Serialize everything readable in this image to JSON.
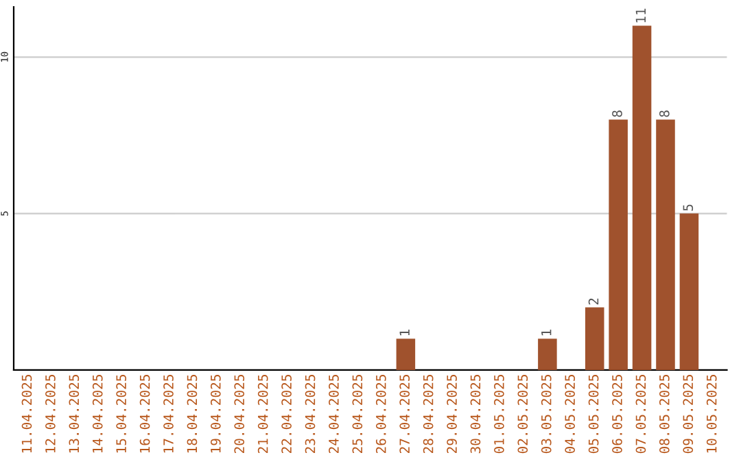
{
  "chart_data": {
    "type": "bar",
    "categories": [
      "11.04.2025",
      "12.04.2025",
      "13.04.2025",
      "14.04.2025",
      "15.04.2025",
      "16.04.2025",
      "17.04.2025",
      "18.04.2025",
      "19.04.2025",
      "20.04.2025",
      "21.04.2025",
      "22.04.2025",
      "23.04.2025",
      "24.04.2025",
      "25.04.2025",
      "26.04.2025",
      "27.04.2025",
      "28.04.2025",
      "29.04.2025",
      "30.04.2025",
      "01.05.2025",
      "02.05.2025",
      "03.05.2025",
      "04.05.2025",
      "05.05.2025",
      "06.05.2025",
      "07.05.2025",
      "08.05.2025",
      "09.05.2025",
      "10.05.2025"
    ],
    "values": [
      0,
      0,
      0,
      0,
      0,
      0,
      0,
      0,
      0,
      0,
      0,
      0,
      0,
      0,
      0,
      0,
      1,
      0,
      0,
      0,
      0,
      0,
      1,
      0,
      2,
      8,
      11,
      8,
      5,
      0
    ],
    "value_labels": [
      null,
      null,
      null,
      null,
      null,
      null,
      null,
      null,
      null,
      null,
      null,
      null,
      null,
      null,
      null,
      null,
      "1",
      null,
      null,
      null,
      null,
      null,
      "1",
      null,
      "2",
      "8",
      "11",
      "8",
      "5",
      null
    ],
    "color": "#a0522d",
    "ylim": [
      0,
      11.6
    ],
    "yticks": [
      5,
      10
    ],
    "grid": "y",
    "legend": false
  }
}
